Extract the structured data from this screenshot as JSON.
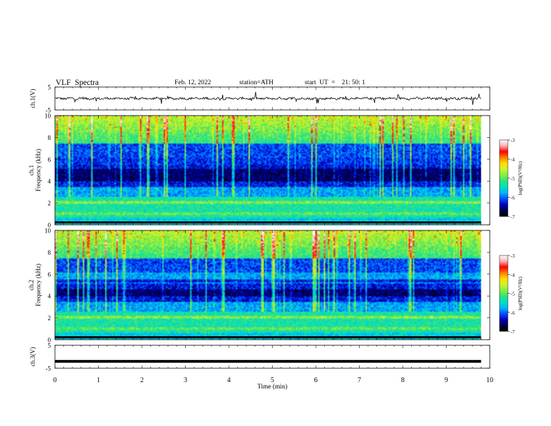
{
  "header": {
    "title": "VLF  Spectra",
    "date": "Feb. 12, 2022",
    "station": "station=ATH",
    "start": "start  UT  =    21: 50: 1"
  },
  "colors": {
    "trace": "#000000",
    "colormap": [
      "#000000",
      "#000040",
      "#0000c0",
      "#0050ff",
      "#00b4ff",
      "#00e0c0",
      "#30e080",
      "#80f040",
      "#d0f030",
      "#ffe000",
      "#ff8000",
      "#ff0000",
      "#ffb0b0",
      "#ffffff"
    ]
  },
  "chart_data": [
    {
      "type": "line",
      "panel": "ch1-waveform",
      "ylabel": "ch.1(V)",
      "ylim": [
        -5,
        5
      ],
      "yticks": [
        "5",
        "-5"
      ],
      "xlim": [
        0,
        10
      ],
      "series": [
        {
          "values_description_level": 0
        }
      ]
    },
    {
      "type": "heatmap",
      "panel": "ch1-spectrogram",
      "ylabel": "ch.1\nFrequency  (kHz)",
      "ylabel_line1": "ch.1",
      "ylabel_line2": "Frequency  (kHz)",
      "ylim": [
        0,
        10
      ],
      "yticks": [
        "0",
        "2",
        "4",
        "6",
        "8",
        "10"
      ],
      "xlim": [
        0,
        10
      ],
      "colorbar": {
        "label": "log(PSD)(V²/Hz)",
        "range": [
          -7,
          -3
        ],
        "ticks": [
          "-3",
          "-4",
          "-5",
          "-6",
          "-7"
        ]
      }
    },
    {
      "type": "heatmap",
      "panel": "ch2-spectrogram",
      "ylabel_line1": "ch.2",
      "ylabel_line2": "Frequency  (kHz)",
      "ylim": [
        0,
        10
      ],
      "yticks": [
        "0",
        "2",
        "4",
        "6",
        "8",
        "10"
      ],
      "xlim": [
        0,
        10
      ],
      "colorbar": {
        "label": "log(PSD)(V²/Hz)",
        "range": [
          -7,
          -3
        ],
        "ticks": [
          "-3",
          "-4",
          "-5",
          "-6",
          "-7"
        ]
      }
    },
    {
      "type": "line",
      "panel": "ch3-waveform",
      "ylabel": "ch.3(V)",
      "ylim": [
        -5,
        5
      ],
      "yticks": [
        "5",
        "-5"
      ],
      "xlim": [
        0,
        10
      ],
      "series": [
        {
          "level": -2
        }
      ]
    }
  ],
  "xaxis": {
    "label": "Time  (min)",
    "ticks": [
      "0",
      "1",
      "2",
      "3",
      "4",
      "5",
      "6",
      "7",
      "8",
      "9",
      "10"
    ],
    "data_end": 9.8
  }
}
